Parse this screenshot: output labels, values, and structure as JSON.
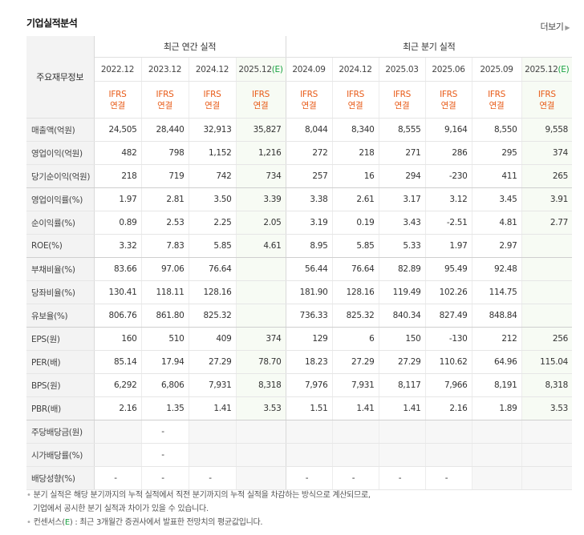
{
  "title": "기업실적분석",
  "more": "더보기",
  "label_header": "주요재무정보",
  "groups": {
    "annual": "최근 연간 실적",
    "quarterly": "최근 분기 실적"
  },
  "columns": [
    {
      "date": "2022.12",
      "est": ""
    },
    {
      "date": "2023.12",
      "est": ""
    },
    {
      "date": "2024.12",
      "est": ""
    },
    {
      "date": "2025.12",
      "est": "(E)"
    },
    {
      "date": "2024.09",
      "est": ""
    },
    {
      "date": "2024.12",
      "est": ""
    },
    {
      "date": "2025.03",
      "est": ""
    },
    {
      "date": "2025.06",
      "est": ""
    },
    {
      "date": "2025.09",
      "est": ""
    },
    {
      "date": "2025.12",
      "est": "(E)"
    }
  ],
  "type_label": {
    "std": "IFRS",
    "kind": "연결"
  },
  "rows": [
    {
      "label": "매출액(억원)",
      "values": [
        "24,505",
        "28,440",
        "32,913",
        "35,827",
        "8,044",
        "8,340",
        "8,555",
        "9,164",
        "8,550",
        "9,558"
      ]
    },
    {
      "label": "영업이익(억원)",
      "values": [
        "482",
        "798",
        "1,152",
        "1,216",
        "272",
        "218",
        "271",
        "286",
        "295",
        "374"
      ]
    },
    {
      "label": "당기순이익(억원)",
      "values": [
        "218",
        "719",
        "742",
        "734",
        "257",
        "16",
        "294",
        "-230",
        "411",
        "265"
      ]
    },
    {
      "label": "영업이익률(%)",
      "values": [
        "1.97",
        "2.81",
        "3.50",
        "3.39",
        "3.38",
        "2.61",
        "3.17",
        "3.12",
        "3.45",
        "3.91"
      ]
    },
    {
      "label": "순이익률(%)",
      "values": [
        "0.89",
        "2.53",
        "2.25",
        "2.05",
        "3.19",
        "0.19",
        "3.43",
        "-2.51",
        "4.81",
        "2.77"
      ]
    },
    {
      "label": "ROE(%)",
      "values": [
        "3.32",
        "7.83",
        "5.85",
        "4.61",
        "8.95",
        "5.85",
        "5.33",
        "1.97",
        "2.97",
        ""
      ]
    },
    {
      "label": "부채비율(%)",
      "values": [
        "83.66",
        "97.06",
        "76.64",
        "",
        "56.44",
        "76.64",
        "82.89",
        "95.49",
        "92.48",
        ""
      ]
    },
    {
      "label": "당좌비율(%)",
      "values": [
        "130.41",
        "118.11",
        "128.16",
        "",
        "181.90",
        "128.16",
        "119.49",
        "102.26",
        "114.75",
        ""
      ]
    },
    {
      "label": "유보율(%)",
      "values": [
        "806.76",
        "861.80",
        "825.32",
        "",
        "736.33",
        "825.32",
        "840.34",
        "827.49",
        "848.84",
        ""
      ]
    },
    {
      "label": "EPS(원)",
      "values": [
        "160",
        "510",
        "409",
        "374",
        "129",
        "6",
        "150",
        "-130",
        "212",
        "256"
      ]
    },
    {
      "label": "PER(배)",
      "values": [
        "85.14",
        "17.94",
        "27.29",
        "78.70",
        "18.23",
        "27.29",
        "27.29",
        "110.62",
        "64.96",
        "115.04"
      ]
    },
    {
      "label": "BPS(원)",
      "values": [
        "6,292",
        "6,806",
        "7,931",
        "8,318",
        "7,976",
        "7,931",
        "8,117",
        "7,966",
        "8,191",
        "8,318"
      ]
    },
    {
      "label": "PBR(배)",
      "values": [
        "2.16",
        "1.35",
        "1.41",
        "3.53",
        "1.51",
        "1.41",
        "1.41",
        "2.16",
        "1.89",
        "3.53"
      ]
    },
    {
      "label": "주당배당금(원)",
      "values": [
        "",
        "-",
        "",
        "",
        "",
        "",
        "",
        "",
        "",
        ""
      ]
    },
    {
      "label": "시가배당률(%)",
      "values": [
        "",
        "-",
        "",
        "",
        "",
        "",
        "",
        "",
        "",
        ""
      ]
    },
    {
      "label": "배당성향(%)",
      "values": [
        "-",
        "-",
        "-",
        "",
        "-",
        "-",
        "-",
        "-",
        "",
        ""
      ]
    }
  ],
  "notes": {
    "line1": "분기 실적은 해당 분기까지의 누적 실적에서 직전 분기까지의 누적 실적을 차감하는 방식으로 계산되므로,",
    "line2": "기업에서 공시한 분기 실적과 차이가 있을 수 있습니다.",
    "line3_pre": "컨센서스(",
    "line3_e": "E",
    "line3_post": ") : 최근 3개월간 증권사에서 발표한 전망치의 평균값입니다."
  },
  "colors": {
    "ifrs": "#e85b18",
    "negative": "#e0191a",
    "estimate_bg": "#f7fbf4",
    "estimate_text": "#18a341"
  }
}
